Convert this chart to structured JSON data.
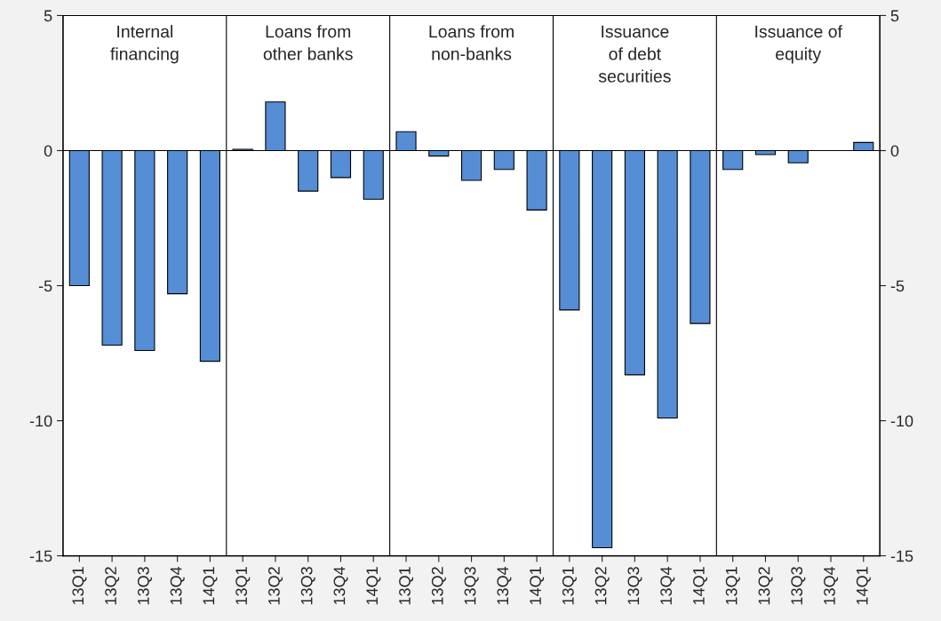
{
  "chart_data": {
    "type": "bar",
    "categories": [
      "13Q1",
      "13Q2",
      "13Q3",
      "13Q4",
      "14Q1",
      "13Q1",
      "13Q2",
      "13Q3",
      "13Q4",
      "14Q1",
      "13Q1",
      "13Q2",
      "13Q3",
      "13Q4",
      "14Q1",
      "13Q1",
      "13Q2",
      "13Q3",
      "13Q4",
      "14Q1",
      "13Q1",
      "13Q2",
      "13Q3",
      "13Q4",
      "14Q1"
    ],
    "values": [
      -5.0,
      -7.2,
      -7.4,
      -5.3,
      -7.8,
      0.05,
      1.8,
      -1.5,
      -1.0,
      -1.8,
      0.7,
      -0.2,
      -1.1,
      -0.7,
      -2.2,
      -5.9,
      -14.7,
      -8.3,
      -9.9,
      -6.4,
      -0.7,
      -0.15,
      -0.45,
      null,
      0.3
    ],
    "ref_lines": [
      {
        "axis": "y",
        "value": 0,
        "color": "#000000"
      }
    ],
    "color": "#558ed5",
    "annotations": [
      "Internal\nfinancing",
      "Loans from\nother banks",
      "Loans from\nnon-banks",
      "Issuance\nof debt\nsecurities",
      "Issuance of\nequity"
    ],
    "ylim": [
      -15,
      5
    ],
    "yticks": [
      -15,
      -10,
      -5,
      0,
      5
    ],
    "y2lim": [
      -15,
      5
    ],
    "y2ticks": [
      -15,
      -10,
      -5,
      0,
      5
    ],
    "grid": false,
    "legend": false
  }
}
